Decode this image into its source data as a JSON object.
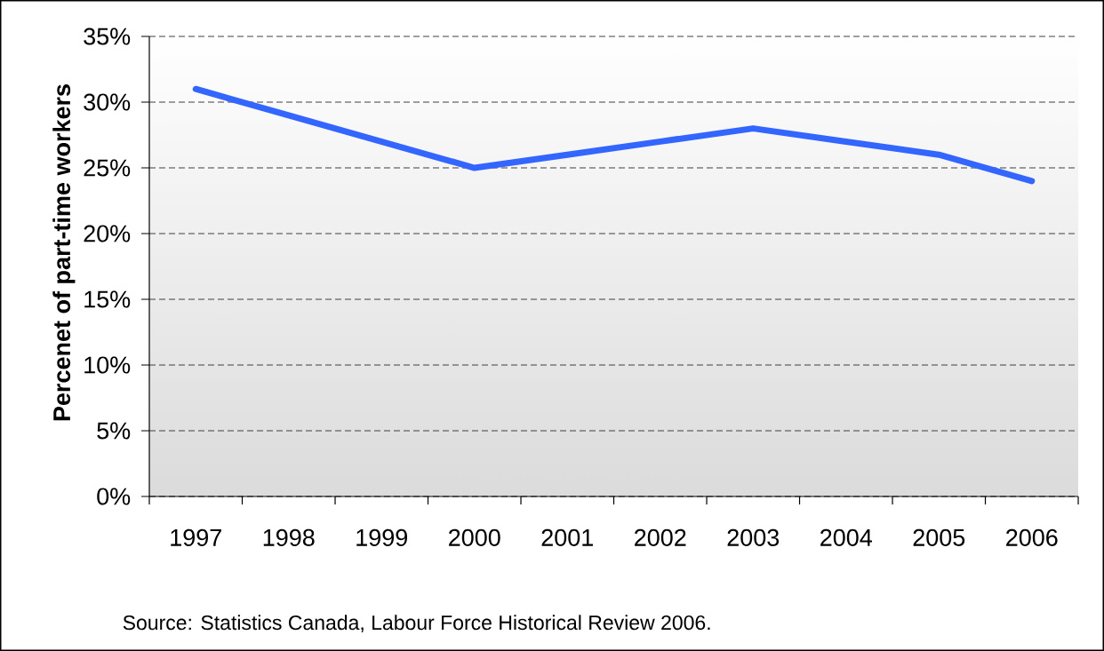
{
  "chart_data": {
    "type": "line",
    "ylabel": "Percenet of part-time workers",
    "categories": [
      "1997",
      "1998",
      "1999",
      "2000",
      "2001",
      "2002",
      "2003",
      "2004",
      "2005",
      "2006"
    ],
    "series": [
      {
        "color": "#3366ff",
        "values": [
          31,
          29,
          27,
          25,
          26,
          27,
          28,
          27,
          26,
          24
        ]
      }
    ],
    "ylim": [
      0,
      35
    ],
    "yticks": [
      {
        "value": 0,
        "label": "0%"
      },
      {
        "value": 5,
        "label": "5%"
      },
      {
        "value": 10,
        "label": "10%"
      },
      {
        "value": 15,
        "label": "15%"
      },
      {
        "value": 20,
        "label": "20%"
      },
      {
        "value": 25,
        "label": "25%"
      },
      {
        "value": 30,
        "label": "30%"
      },
      {
        "value": 35,
        "label": "35%"
      }
    ],
    "grid": "y",
    "annotations": [
      "Source: Statistics Canada, Labour Force Historical Review 2006."
    ]
  }
}
